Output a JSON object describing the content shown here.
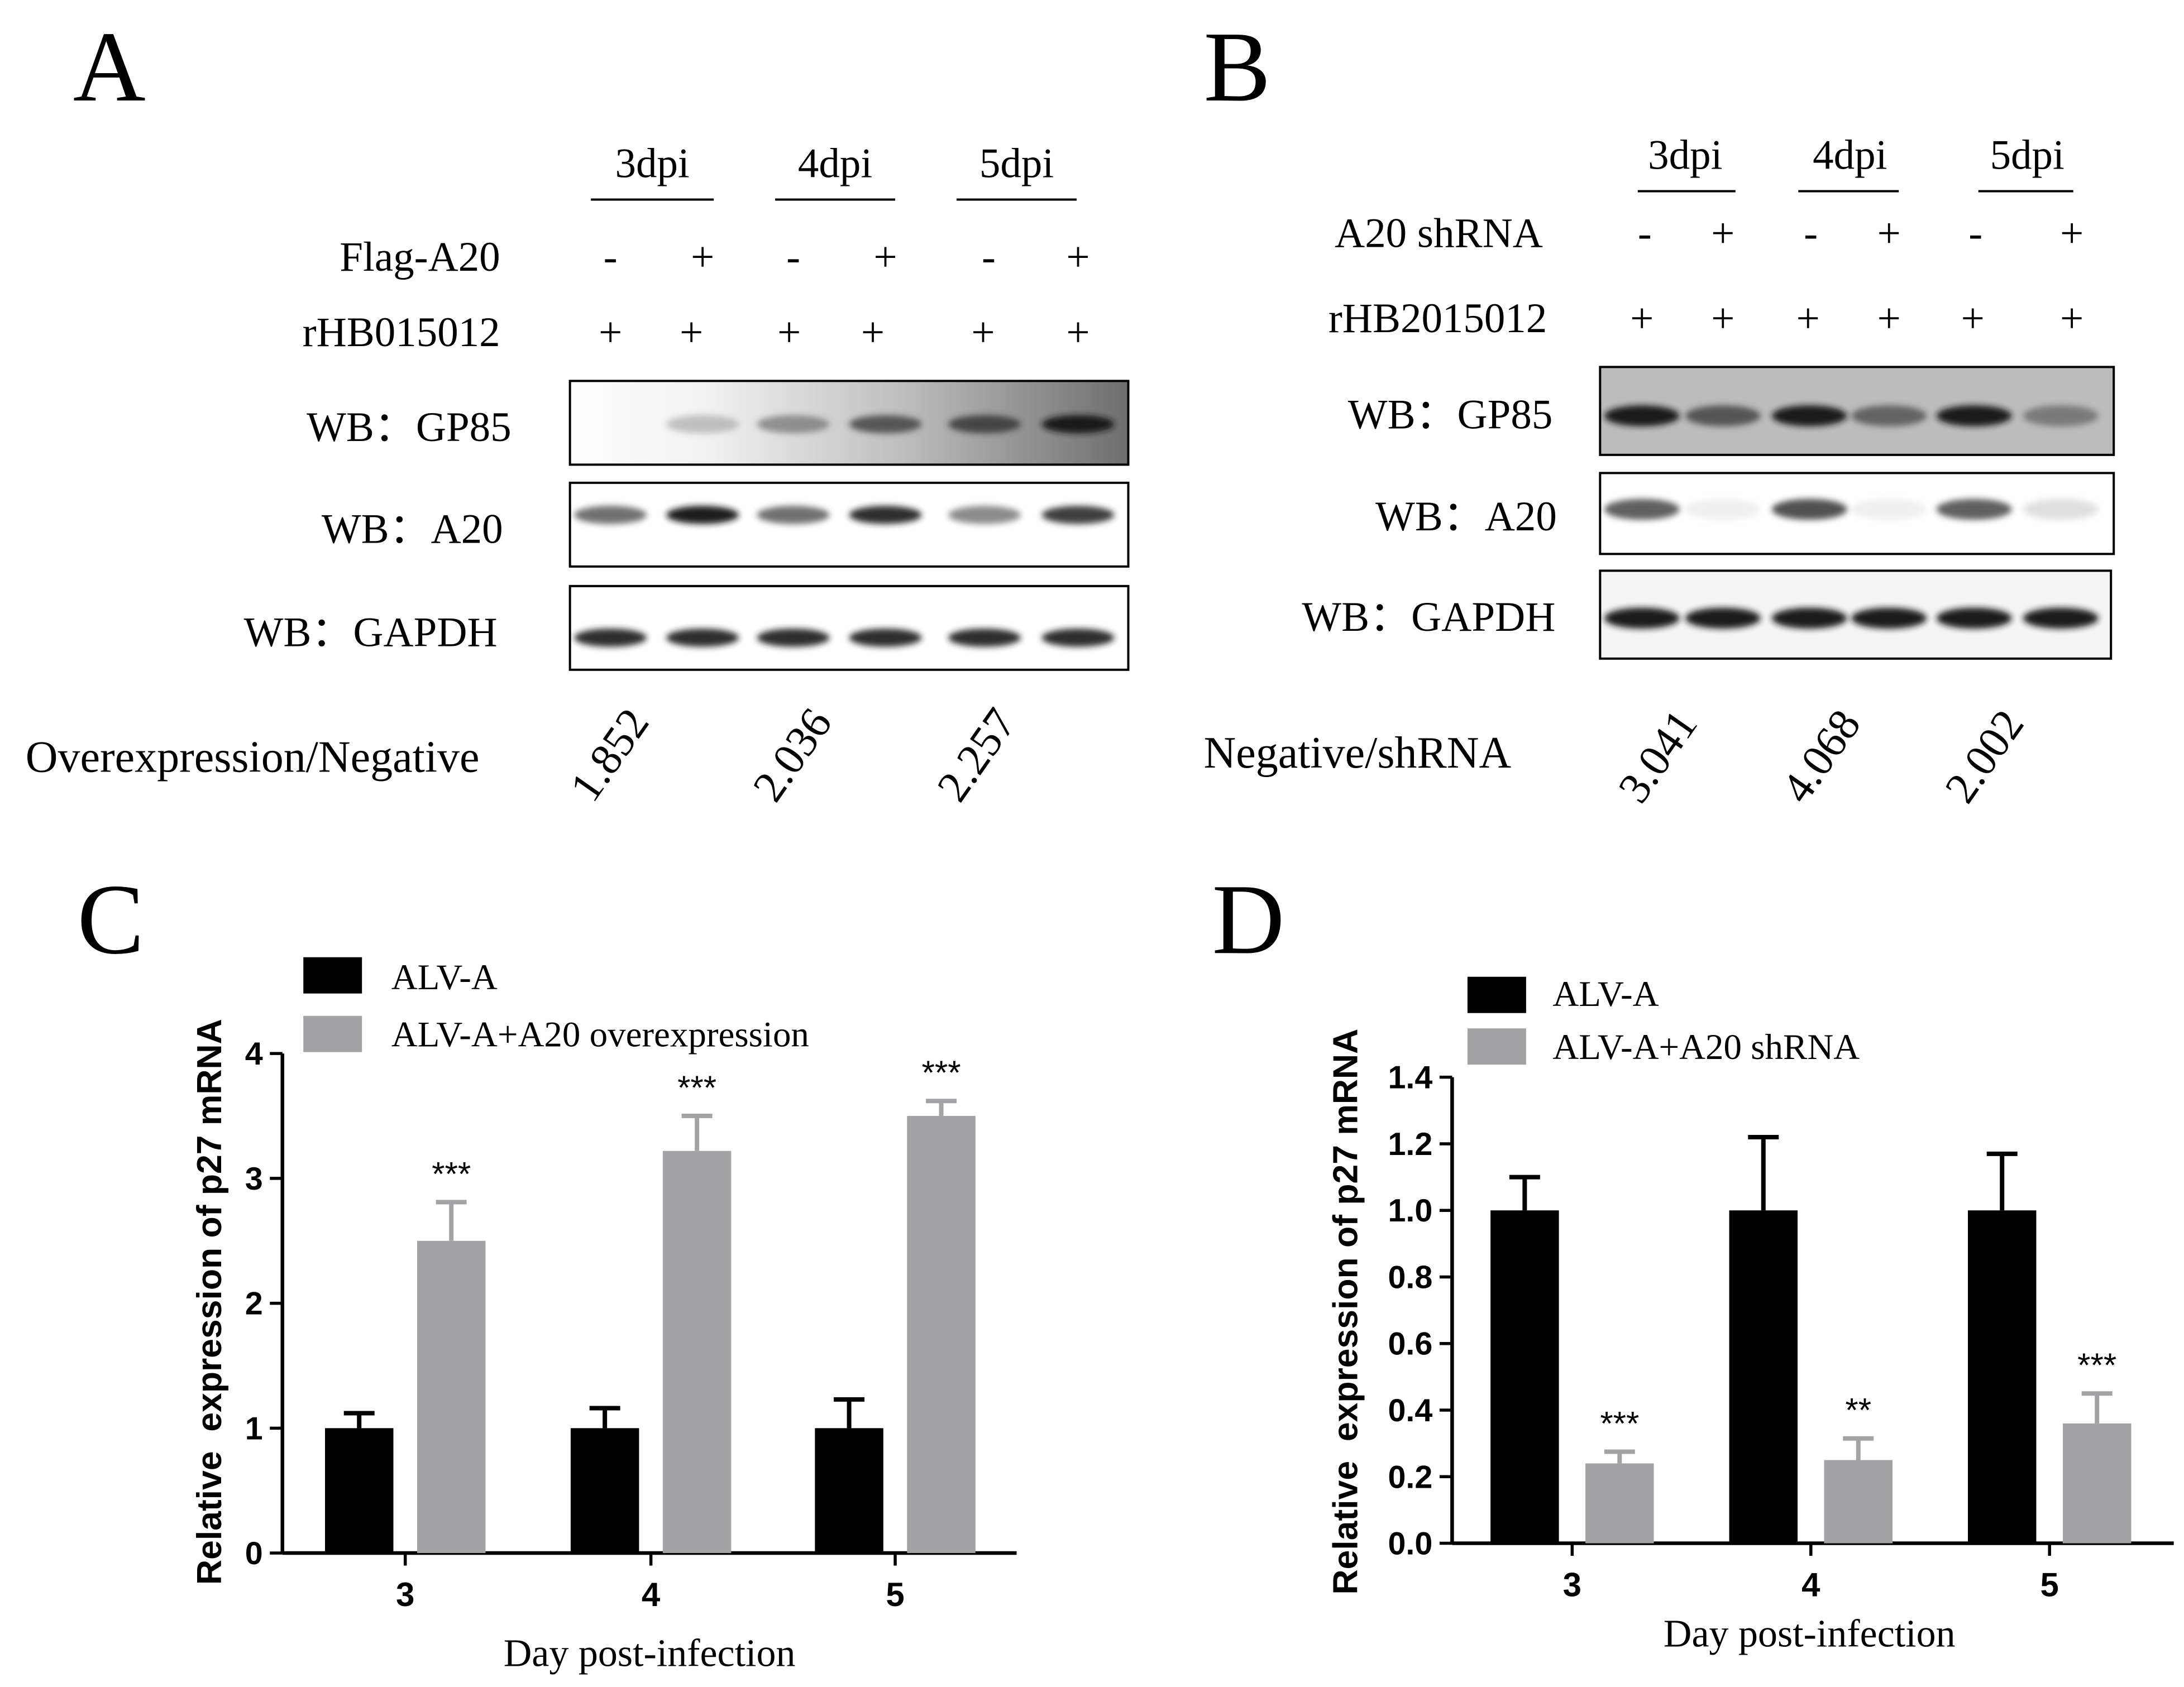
{
  "colors": {
    "bar_a": "#000000",
    "bar_b": "#a3a3a6",
    "frame": "#000000"
  },
  "panel_a": {
    "letter": "A",
    "groups": [
      "3dpi",
      "4dpi",
      "5dpi"
    ],
    "row_labels": [
      "Flag-A20",
      "rHB015012"
    ],
    "row_values": [
      [
        "-",
        "+",
        "-",
        "+",
        "-",
        "+"
      ],
      [
        "+",
        "+",
        "+",
        "+",
        "+",
        "+"
      ]
    ],
    "blots": [
      {
        "label": "WB：GP85",
        "bands": [
          0.0,
          0.35,
          0.55,
          0.75,
          0.8,
          0.95
        ]
      },
      {
        "label": "WB：A20",
        "bands": [
          0.7,
          0.95,
          0.7,
          0.9,
          0.6,
          0.85
        ]
      },
      {
        "label": "WB：GAPDH",
        "bands": [
          0.9,
          0.9,
          0.9,
          0.9,
          0.9,
          0.9
        ]
      }
    ],
    "ratio_label": "Overexpression/Negative",
    "ratios": [
      "1.852",
      "2.036",
      "2.257"
    ]
  },
  "panel_b": {
    "letter": "B",
    "groups": [
      "3dpi",
      "4dpi",
      "5dpi"
    ],
    "row_labels": [
      "A20 shRNA",
      "rHB2015012"
    ],
    "row_values": [
      [
        "-",
        "+",
        "-",
        "+",
        "-",
        "+"
      ],
      [
        "+",
        "+",
        "+",
        "+",
        "+",
        "+"
      ]
    ],
    "blots": [
      {
        "label": "WB：GP85",
        "bands": [
          0.95,
          0.75,
          0.95,
          0.7,
          0.95,
          0.6
        ]
      },
      {
        "label": "WB：A20",
        "bands": [
          0.75,
          0.08,
          0.8,
          0.08,
          0.75,
          0.2
        ]
      },
      {
        "label": "WB：GAPDH",
        "bands": [
          0.95,
          0.95,
          0.95,
          0.95,
          0.95,
          0.95
        ]
      }
    ],
    "ratio_label": "Negative/shRNA",
    "ratios": [
      "3.041",
      "4.068",
      "2.002"
    ]
  },
  "chart_data": [
    {
      "panel": "C",
      "type": "bar",
      "categories": [
        "3",
        "4",
        "5"
      ],
      "series": [
        {
          "name": "ALV-A",
          "values": [
            1.0,
            1.0,
            1.0
          ],
          "errors": [
            0.12,
            0.16,
            0.23
          ]
        },
        {
          "name": "ALV-A+A20 overexpression",
          "values": [
            2.5,
            3.22,
            3.5
          ],
          "errors": [
            0.31,
            0.28,
            0.12
          ]
        }
      ],
      "significance": [
        "***",
        "***",
        "***"
      ],
      "xlabel": "Day post-infection",
      "ylabel": "Relative  expression of p27 mRNA",
      "ylim": [
        0,
        4
      ],
      "yticks": [
        "0",
        "1",
        "2",
        "3",
        "4"
      ],
      "grid": false,
      "legend": "top-left"
    },
    {
      "panel": "D",
      "type": "bar",
      "categories": [
        "3",
        "4",
        "5"
      ],
      "series": [
        {
          "name": "ALV-A",
          "values": [
            1.0,
            1.0,
            1.0
          ],
          "errors": [
            0.1,
            0.22,
            0.17
          ]
        },
        {
          "name": "ALV-A+A20 shRNA",
          "values": [
            0.24,
            0.25,
            0.36
          ],
          "errors": [
            0.035,
            0.065,
            0.09
          ]
        }
      ],
      "significance": [
        "***",
        "**",
        "***"
      ],
      "xlabel": "Day post-infection",
      "ylabel": "Relative  expression of p27 mRNA",
      "ylim": [
        0,
        1.4
      ],
      "yticks": [
        "0.0",
        "0.2",
        "0.4",
        "0.6",
        "0.8",
        "1.0",
        "1.2",
        "1.4"
      ],
      "grid": false,
      "legend": "top-left"
    }
  ],
  "panel_c_letter": "C",
  "panel_d_letter": "D"
}
